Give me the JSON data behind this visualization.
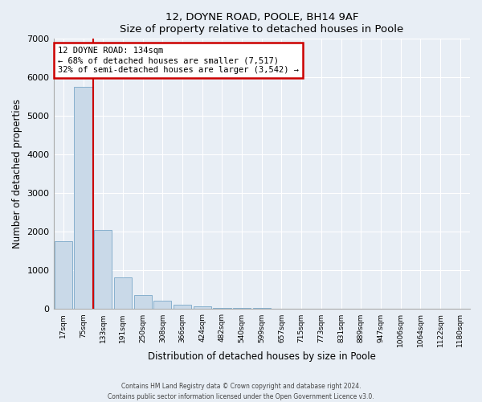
{
  "title1": "12, DOYNE ROAD, POOLE, BH14 9AF",
  "title2": "Size of property relative to detached houses in Poole",
  "xlabel": "Distribution of detached houses by size in Poole",
  "ylabel": "Number of detached properties",
  "bar_labels": [
    "17sqm",
    "75sqm",
    "133sqm",
    "191sqm",
    "250sqm",
    "308sqm",
    "366sqm",
    "424sqm",
    "482sqm",
    "540sqm",
    "599sqm",
    "657sqm",
    "715sqm",
    "773sqm",
    "831sqm",
    "889sqm",
    "947sqm",
    "1006sqm",
    "1064sqm",
    "1122sqm",
    "1180sqm"
  ],
  "bar_values": [
    1750,
    5750,
    2050,
    820,
    370,
    210,
    110,
    65,
    30,
    30,
    20,
    0,
    0,
    0,
    0,
    0,
    0,
    0,
    0,
    0,
    0
  ],
  "bar_color": "#c9d9e8",
  "bar_edgecolor": "#7aa8c8",
  "ylim": [
    0,
    7000
  ],
  "yticks": [
    0,
    1000,
    2000,
    3000,
    4000,
    5000,
    6000,
    7000
  ],
  "property_line_color": "#cc0000",
  "annotation_title": "12 DOYNE ROAD: 134sqm",
  "annotation_line1": "← 68% of detached houses are smaller (7,517)",
  "annotation_line2": "32% of semi-detached houses are larger (3,542) →",
  "annotation_box_color": "#cc0000",
  "footer1": "Contains HM Land Registry data © Crown copyright and database right 2024.",
  "footer2": "Contains public sector information licensed under the Open Government Licence v3.0.",
  "bg_color": "#e8eef5",
  "plot_bg_color": "#e8eef5",
  "grid_color": "#ffffff",
  "spine_color": "#aaaaaa"
}
